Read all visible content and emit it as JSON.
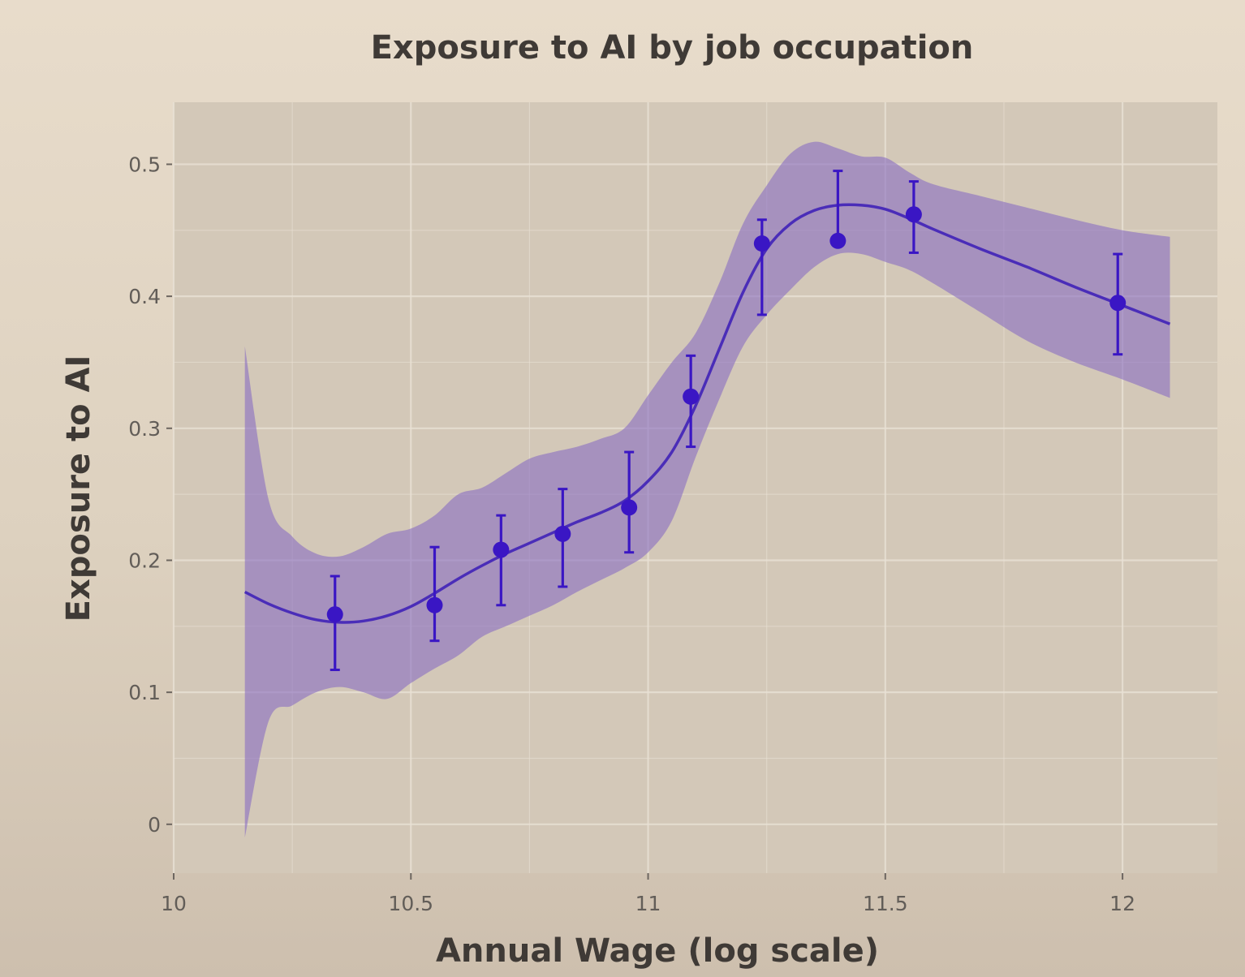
{
  "chart_data": {
    "type": "scatter",
    "title": "Exposure to AI by job occupation",
    "xlabel": "Annual Wage (log scale)",
    "ylabel": "Exposure to AI",
    "xlim": [
      10,
      12.2
    ],
    "ylim": [
      -0.037,
      0.547
    ],
    "x_ticks": [
      10,
      10.5,
      11,
      11.5,
      12
    ],
    "x_tick_labels": [
      "10",
      "10.5",
      "11",
      "11.5",
      "12"
    ],
    "y_ticks": [
      0,
      0.1,
      0.2,
      0.3,
      0.4,
      0.5
    ],
    "y_tick_labels": [
      "0",
      "0.1",
      "0.2",
      "0.3",
      "0.4",
      "0.5"
    ],
    "grid": true,
    "colors": {
      "point": "#3a16c4",
      "line": "#4a2db8",
      "ribbon": "#8a70c2",
      "panel": "#d3c8b8",
      "grid": "#e9e1d5"
    },
    "series": [
      {
        "type": "points_with_error_bars",
        "points": [
          {
            "x": 10.34,
            "y": 0.159,
            "low": 0.117,
            "high": 0.188
          },
          {
            "x": 10.55,
            "y": 0.166,
            "low": 0.139,
            "high": 0.21
          },
          {
            "x": 10.69,
            "y": 0.208,
            "low": 0.166,
            "high": 0.234
          },
          {
            "x": 10.82,
            "y": 0.22,
            "low": 0.18,
            "high": 0.254
          },
          {
            "x": 10.96,
            "y": 0.24,
            "low": 0.206,
            "high": 0.282
          },
          {
            "x": 11.09,
            "y": 0.324,
            "low": 0.286,
            "high": 0.355
          },
          {
            "x": 11.24,
            "y": 0.44,
            "low": 0.386,
            "high": 0.458
          },
          {
            "x": 11.4,
            "y": 0.442,
            "low": 0.442,
            "high": 0.495
          },
          {
            "x": 11.56,
            "y": 0.462,
            "low": 0.433,
            "high": 0.487
          },
          {
            "x": 11.99,
            "y": 0.395,
            "low": 0.356,
            "high": 0.432
          }
        ]
      },
      {
        "type": "smooth_fit",
        "x": [
          10.15,
          10.2,
          10.25,
          10.3,
          10.35,
          10.4,
          10.45,
          10.5,
          10.55,
          10.6,
          10.65,
          10.7,
          10.75,
          10.8,
          10.85,
          10.9,
          10.95,
          11.0,
          11.05,
          11.1,
          11.15,
          11.2,
          11.25,
          11.3,
          11.35,
          11.4,
          11.45,
          11.5,
          11.55,
          11.6,
          11.7,
          11.8,
          11.9,
          12.0,
          12.1
        ],
        "y": [
          0.176,
          0.167,
          0.16,
          0.155,
          0.153,
          0.154,
          0.158,
          0.165,
          0.175,
          0.186,
          0.196,
          0.205,
          0.213,
          0.221,
          0.229,
          0.236,
          0.245,
          0.26,
          0.282,
          0.317,
          0.36,
          0.403,
          0.436,
          0.455,
          0.465,
          0.469,
          0.469,
          0.466,
          0.459,
          0.451,
          0.436,
          0.422,
          0.407,
          0.393,
          0.379
        ],
        "lower": [
          -0.01,
          0.078,
          0.09,
          0.1,
          0.104,
          0.1,
          0.095,
          0.107,
          0.118,
          0.128,
          0.142,
          0.15,
          0.158,
          0.166,
          0.176,
          0.185,
          0.194,
          0.206,
          0.23,
          0.278,
          0.322,
          0.362,
          0.386,
          0.405,
          0.422,
          0.432,
          0.432,
          0.426,
          0.42,
          0.41,
          0.388,
          0.366,
          0.35,
          0.337,
          0.323
        ],
        "upper": [
          0.362,
          0.246,
          0.218,
          0.205,
          0.203,
          0.21,
          0.22,
          0.224,
          0.234,
          0.25,
          0.255,
          0.266,
          0.277,
          0.282,
          0.286,
          0.292,
          0.3,
          0.325,
          0.35,
          0.372,
          0.41,
          0.455,
          0.484,
          0.508,
          0.517,
          0.512,
          0.506,
          0.505,
          0.494,
          0.485,
          0.476,
          0.467,
          0.458,
          0.45,
          0.445
        ]
      }
    ]
  }
}
